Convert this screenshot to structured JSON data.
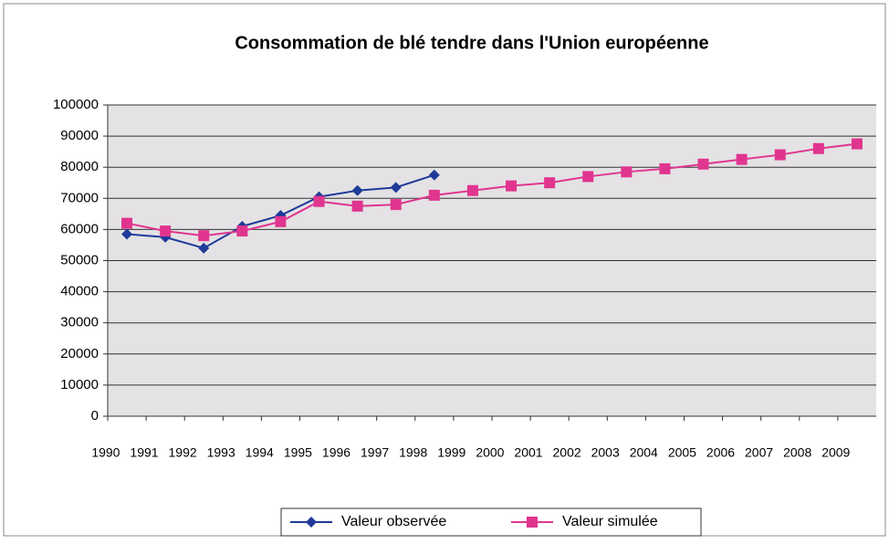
{
  "chart_data": {
    "type": "line",
    "title": "Consommation de blé tendre dans l'Union européenne",
    "categories": [
      "1990",
      "1991",
      "1992",
      "1993",
      "1994",
      "1995",
      "1996",
      "1997",
      "1998",
      "1999",
      "2000",
      "2001",
      "2002",
      "2003",
      "2004",
      "2005",
      "2006",
      "2007",
      "2008",
      "2009"
    ],
    "series": [
      {
        "name": "Valeur observée",
        "color": "#1f3a99",
        "marker": "diamond",
        "values": [
          58500,
          57500,
          54000,
          61000,
          64500,
          70500,
          72500,
          73500,
          77500,
          null,
          null,
          null,
          null,
          null,
          null,
          null,
          null,
          null,
          null,
          null
        ]
      },
      {
        "name": "Valeur simulée",
        "color": "#e0358f",
        "marker": "square",
        "values": [
          62000,
          59500,
          58000,
          59500,
          62500,
          69000,
          67500,
          68000,
          71000,
          72500,
          74000,
          75000,
          77000,
          78500,
          79500,
          81000,
          82500,
          84000,
          86000,
          87500
        ]
      }
    ],
    "ylim": [
      0,
      100000
    ],
    "yticks": [
      0,
      10000,
      20000,
      30000,
      40000,
      50000,
      60000,
      70000,
      80000,
      90000,
      100000
    ],
    "grid": true,
    "legend": "bottom"
  }
}
